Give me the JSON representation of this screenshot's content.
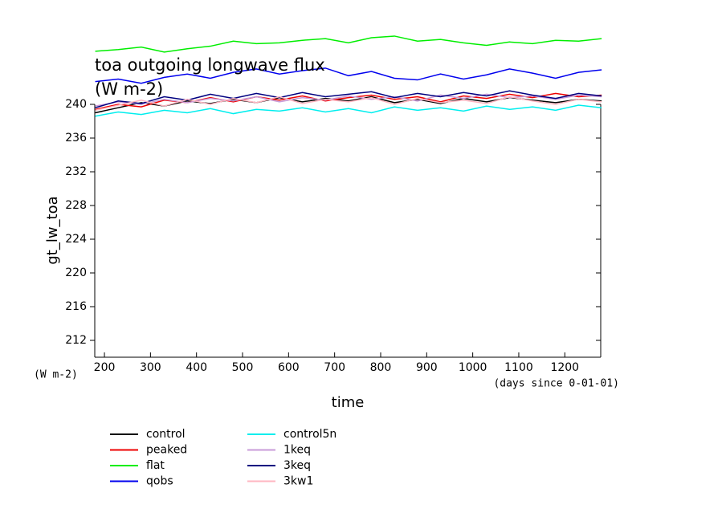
{
  "chart_data": {
    "type": "line",
    "title": "toa outgoing longwave flux",
    "subtitle": "(W m-2)",
    "y_label": "gt_lw_toa",
    "y_units": "(W m-2)",
    "x_label": "time",
    "x_units": "(days since 0-01-01)",
    "x": [
      180,
      230,
      280,
      330,
      380,
      430,
      480,
      530,
      580,
      630,
      680,
      730,
      780,
      830,
      880,
      930,
      980,
      1030,
      1080,
      1130,
      1180,
      1230,
      1280
    ],
    "xlim": [
      179,
      1278
    ],
    "xticks": [
      200,
      300,
      400,
      500,
      600,
      700,
      800,
      900,
      1000,
      1100,
      1200
    ],
    "ylim": [
      210,
      240
    ],
    "yticks": [
      212,
      216,
      220,
      224,
      228,
      232,
      236,
      240
    ],
    "series": [
      {
        "name": "control",
        "color": "#000000",
        "values": [
          239.0,
          239.6,
          240.2,
          239.8,
          240.4,
          240.1,
          240.6,
          240.2,
          240.8,
          240.3,
          240.7,
          240.4,
          240.9,
          240.2,
          240.6,
          240.1,
          240.7,
          240.3,
          240.8,
          240.5,
          240.2,
          240.6,
          240.4
        ]
      },
      {
        "name": "peaked",
        "color": "#ee0000",
        "values": [
          239.4,
          240.0,
          239.7,
          240.5,
          240.2,
          240.8,
          240.3,
          240.9,
          240.5,
          241.0,
          240.4,
          240.8,
          241.1,
          240.6,
          240.9,
          240.3,
          241.0,
          240.7,
          241.2,
          240.8,
          241.3,
          240.9,
          241.1
        ]
      },
      {
        "name": "flat",
        "color": "#00ee00",
        "values": [
          246.3,
          246.5,
          246.8,
          246.2,
          246.6,
          246.9,
          247.5,
          247.2,
          247.3,
          247.6,
          247.8,
          247.3,
          247.9,
          248.1,
          247.5,
          247.7,
          247.3,
          247.0,
          247.4,
          247.2,
          247.6,
          247.5,
          247.8
        ]
      },
      {
        "name": "qobs",
        "color": "#0000ee",
        "values": [
          242.7,
          243.0,
          242.5,
          243.2,
          243.6,
          243.1,
          243.8,
          244.2,
          243.6,
          244.0,
          244.3,
          243.4,
          243.9,
          243.1,
          242.9,
          243.6,
          243.0,
          243.5,
          244.2,
          243.7,
          243.1,
          243.8,
          244.1
        ]
      },
      {
        "name": "control5n",
        "color": "#00eeee",
        "values": [
          238.6,
          239.1,
          238.8,
          239.3,
          239.0,
          239.5,
          238.9,
          239.4,
          239.2,
          239.6,
          239.1,
          239.5,
          239.0,
          239.7,
          239.3,
          239.6,
          239.2,
          239.8,
          239.4,
          239.7,
          239.3,
          239.9,
          239.6
        ]
      },
      {
        "name": "1keq",
        "color": "#c89bd8",
        "values": [
          239.8,
          240.3,
          240.0,
          240.6,
          240.2,
          240.7,
          240.4,
          240.9,
          240.3,
          240.8,
          240.5,
          241.0,
          240.6,
          240.9,
          240.4,
          241.1,
          240.7,
          241.2,
          240.8,
          241.0,
          240.6,
          241.1,
          240.9
        ]
      },
      {
        "name": "3keq",
        "color": "#000080",
        "values": [
          239.6,
          240.4,
          240.1,
          240.9,
          240.5,
          241.2,
          240.7,
          241.3,
          240.8,
          241.4,
          240.9,
          241.2,
          241.5,
          240.8,
          241.3,
          240.9,
          241.4,
          241.0,
          241.6,
          241.1,
          240.7,
          241.3,
          241.0
        ]
      },
      {
        "name": "3kw1",
        "color": "#ffb6c1",
        "values": [
          239.3,
          239.9,
          240.5,
          239.8,
          240.6,
          240.0,
          240.7,
          240.2,
          240.9,
          240.1,
          240.6,
          240.3,
          240.8,
          240.0,
          240.7,
          240.2,
          240.5,
          240.1,
          240.9,
          240.4,
          240.0,
          240.6,
          240.3
        ]
      }
    ]
  }
}
